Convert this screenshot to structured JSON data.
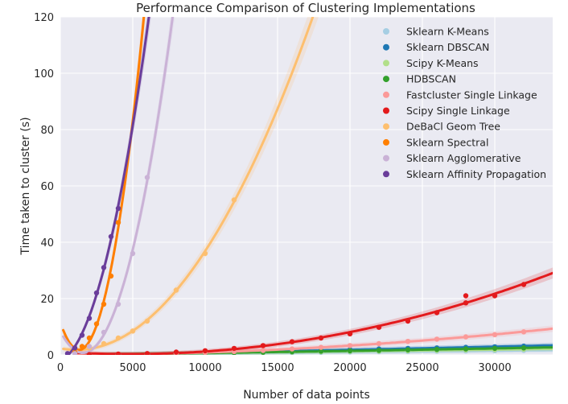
{
  "chart_data": {
    "type": "scatter",
    "title": "Performance Comparison of Clustering Implementations",
    "xlabel": "Number of data points",
    "ylabel": "Time taken to cluster (s)",
    "xlim": [
      0,
      34000
    ],
    "ylim": [
      0,
      120
    ],
    "xticks": [
      "0",
      "5000",
      "10000",
      "15000",
      "20000",
      "25000",
      "30000"
    ],
    "yticks": [
      "0",
      "20",
      "40",
      "60",
      "80",
      "100",
      "120"
    ],
    "grid": true,
    "legend_position": "top-right",
    "series": [
      {
        "name": "Sklearn K-Means",
        "color": "#a6cee3",
        "x": [
          2000,
          4000,
          6000,
          8000,
          10000,
          12000,
          14000,
          16000,
          18000,
          20000,
          22000,
          24000,
          26000,
          28000,
          30000,
          32000
        ],
        "y": [
          0.1,
          0.2,
          0.3,
          0.4,
          0.5,
          0.6,
          0.7,
          0.8,
          0.9,
          1.0,
          1.1,
          1.2,
          1.3,
          1.4,
          1.5,
          1.6
        ]
      },
      {
        "name": "Sklearn DBSCAN",
        "color": "#1f78b4",
        "x": [
          2000,
          4000,
          6000,
          8000,
          10000,
          12000,
          14000,
          16000,
          18000,
          20000,
          22000,
          24000,
          26000,
          28000,
          30000,
          32000
        ],
        "y": [
          0.05,
          0.15,
          0.3,
          0.45,
          0.65,
          0.9,
          1.1,
          1.35,
          1.6,
          1.85,
          2.1,
          2.3,
          2.5,
          2.7,
          2.9,
          3.1
        ]
      },
      {
        "name": "Scipy K-Means",
        "color": "#b2df8a",
        "x": [
          2000,
          4000,
          6000,
          8000,
          10000,
          12000,
          14000,
          16000,
          18000,
          20000,
          22000,
          24000,
          26000,
          28000,
          30000,
          32000
        ],
        "y": [
          0.1,
          0.2,
          0.35,
          0.5,
          0.6,
          0.75,
          0.85,
          1.0,
          1.1,
          1.25,
          1.35,
          1.5,
          1.6,
          1.75,
          1.85,
          2.0
        ]
      },
      {
        "name": "HDBSCAN",
        "color": "#33a02c",
        "x": [
          2000,
          4000,
          6000,
          8000,
          10000,
          12000,
          14000,
          16000,
          18000,
          20000,
          22000,
          24000,
          26000,
          28000,
          30000,
          32000
        ],
        "y": [
          0.1,
          0.2,
          0.35,
          0.5,
          0.65,
          0.8,
          0.95,
          1.1,
          1.3,
          1.45,
          1.6,
          1.8,
          1.95,
          2.1,
          2.3,
          2.5
        ]
      },
      {
        "name": "Fastcluster Single Linkage",
        "color": "#fb9a99",
        "x": [
          2000,
          4000,
          6000,
          8000,
          10000,
          12000,
          14000,
          16000,
          18000,
          20000,
          22000,
          24000,
          26000,
          28000,
          30000,
          32000
        ],
        "y": [
          0.05,
          0.15,
          0.3,
          0.5,
          0.8,
          1.2,
          1.6,
          2.1,
          2.7,
          3.3,
          4.0,
          4.8,
          5.6,
          6.4,
          7.2,
          8.2
        ]
      },
      {
        "name": "Scipy Single Linkage",
        "color": "#e31a1c",
        "x": [
          2000,
          4000,
          6000,
          8000,
          10000,
          12000,
          14000,
          16000,
          18000,
          20000,
          22000,
          24000,
          26000,
          28000,
          28000,
          30000,
          32000
        ],
        "y": [
          0.1,
          0.3,
          0.5,
          1.0,
          1.5,
          2.3,
          3.3,
          4.7,
          6.0,
          7.5,
          9.8,
          12.0,
          15.0,
          18.5,
          21.0,
          21.0,
          25.0
        ]
      },
      {
        "name": "DeBaCl Geom Tree",
        "color": "#fdbf6f",
        "x": [
          1000,
          2000,
          3000,
          4000,
          5000,
          6000,
          8000,
          10000,
          12000
        ],
        "y": [
          1.0,
          2.5,
          4.0,
          6.0,
          8.5,
          12.0,
          23.0,
          36.0,
          55.0
        ]
      },
      {
        "name": "Sklearn Spectral",
        "color": "#ff7f00",
        "x": [
          1000,
          1500,
          2000,
          2500,
          3000,
          3500,
          4000
        ],
        "y": [
          1.0,
          3.0,
          6.0,
          11.0,
          18.0,
          28.0,
          47.0
        ]
      },
      {
        "name": "Sklearn Agglomerative",
        "color": "#cab2d6",
        "x": [
          1000,
          2000,
          3000,
          4000,
          5000,
          6000
        ],
        "y": [
          0.5,
          3.0,
          8.0,
          18.0,
          36.0,
          63.0
        ]
      },
      {
        "name": "Sklearn Affinity Propagation",
        "color": "#6a3d9a",
        "x": [
          500,
          1000,
          1500,
          2000,
          2500,
          3000,
          3500,
          4000
        ],
        "y": [
          0.5,
          2.5,
          7.0,
          13.0,
          22.0,
          31.0,
          42.0,
          52.0
        ]
      }
    ]
  }
}
